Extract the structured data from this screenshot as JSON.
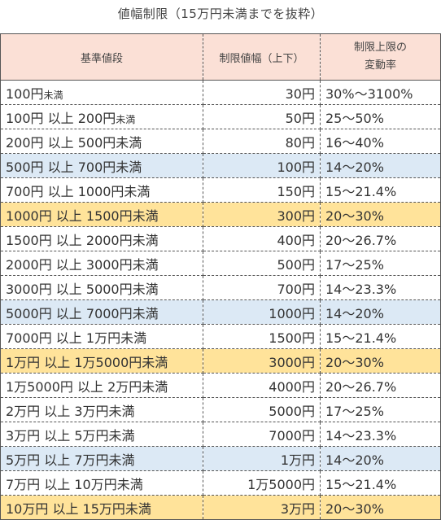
{
  "title": "値幅制限（15万円未満までを抜粋）",
  "headers": {
    "base_price": "基準値段",
    "limit_width": "制限値幅（上下）",
    "rate_line1": "制限上限の",
    "rate_line2": "変動率"
  },
  "highlight_colors": {
    "blue": "#dce9f5",
    "yellow": "#ffe39a",
    "header": "#fbe0d6"
  },
  "rows": [
    {
      "price_main": "100円",
      "price_suffix": "未満",
      "limit": "30円",
      "rate": "30%～3100%",
      "highlight": "none"
    },
    {
      "price_main": "100円 以上 200円",
      "price_suffix": "未満",
      "limit": "50円",
      "rate": "25～50%",
      "highlight": "none"
    },
    {
      "price_main": "200円 以上 500円未満",
      "price_suffix": "",
      "limit": "80円",
      "rate": "16～40%",
      "highlight": "none"
    },
    {
      "price_main": "500円 以上 700円未満",
      "price_suffix": "",
      "limit": "100円",
      "rate": "14～20%",
      "highlight": "blue"
    },
    {
      "price_main": "700円 以上 1000円未満",
      "price_suffix": "",
      "limit": "150円",
      "rate": "15～21.4%",
      "highlight": "none"
    },
    {
      "price_main": "1000円 以上 1500円未満",
      "price_suffix": "",
      "limit": "300円",
      "rate": "20～30%",
      "highlight": "yellow"
    },
    {
      "price_main": "1500円 以上 2000円未満",
      "price_suffix": "",
      "limit": "400円",
      "rate": "20～26.7%",
      "highlight": "none"
    },
    {
      "price_main": "2000円 以上 3000円未満",
      "price_suffix": "",
      "limit": "500円",
      "rate": "17～25%",
      "highlight": "none"
    },
    {
      "price_main": "3000円 以上 5000円未満",
      "price_suffix": "",
      "limit": "700円",
      "rate": "14～23.3%",
      "highlight": "none"
    },
    {
      "price_main": "5000円 以上 7000円未満",
      "price_suffix": "",
      "limit": "1000円",
      "rate": "14～20%",
      "highlight": "blue"
    },
    {
      "price_main": "7000円 以上 1万円未満",
      "price_suffix": "",
      "limit": "1500円",
      "rate": "15～21.4%",
      "highlight": "none"
    },
    {
      "price_main": "1万円 以上 1万5000円未満",
      "price_suffix": "",
      "limit": "3000円",
      "rate": "20～30%",
      "highlight": "yellow"
    },
    {
      "price_main": "1万5000円 以上 2万円未満",
      "price_suffix": "",
      "limit": "4000円",
      "rate": "20～26.7%",
      "highlight": "none"
    },
    {
      "price_main": "2万円 以上 3万円未満",
      "price_suffix": "",
      "limit": "5000円",
      "rate": "17～25%",
      "highlight": "none"
    },
    {
      "price_main": "3万円 以上 5万円未満",
      "price_suffix": "",
      "limit": "7000円",
      "rate": "14～23.3%",
      "highlight": "none"
    },
    {
      "price_main": "5万円 以上 7万円未満",
      "price_suffix": "",
      "limit": "1万円",
      "rate": "14～20%",
      "highlight": "blue"
    },
    {
      "price_main": "7万円 以上 10万円未満",
      "price_suffix": "",
      "limit": "1万5000円",
      "rate": "15～21.4%",
      "highlight": "none"
    },
    {
      "price_main": "10万円 以上 15万円未満",
      "price_suffix": "",
      "limit": "3万円",
      "rate": "20～30%",
      "highlight": "yellow"
    }
  ]
}
